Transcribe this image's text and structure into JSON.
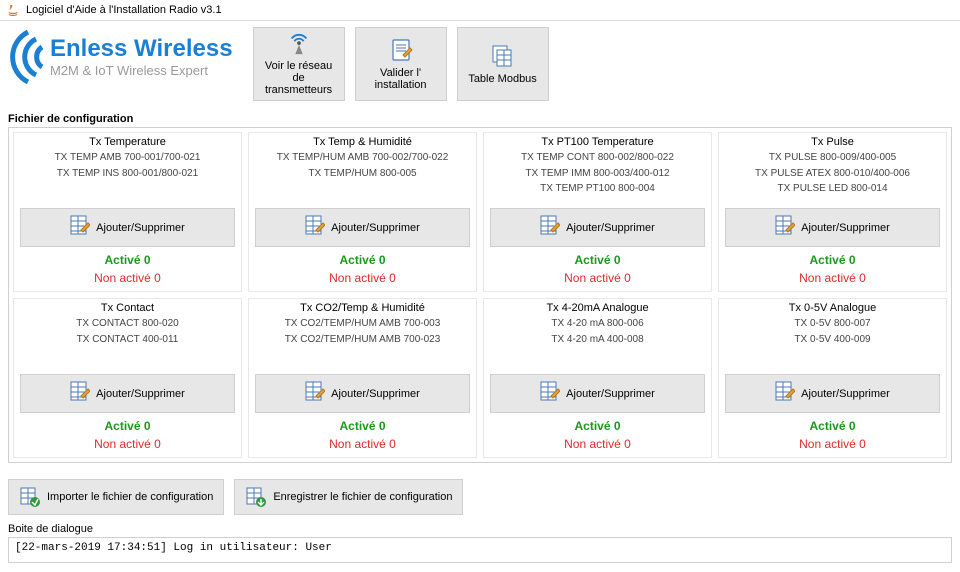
{
  "window": {
    "title": "Logiciel d'Aide à l'Installation Radio v3.1"
  },
  "logo": {
    "brand": "Enless Wireless",
    "tagline": "M2M & IoT Wireless Expert"
  },
  "topButtons": {
    "network": "Voir le réseau de transmetteurs",
    "validate": "Valider l' installation",
    "modbus": "Table Modbus"
  },
  "configSectionTitle": "Fichier de configuration",
  "labels": {
    "ajouter": "Ajouter/Supprimer",
    "active": "Activé 0",
    "inactive": "Non activé 0"
  },
  "cards": [
    {
      "title": "Tx Temperature",
      "models": [
        "TX TEMP AMB 700-001/700-021",
        "TX TEMP INS 800-001/800-021"
      ]
    },
    {
      "title": "Tx Temp & Humidité",
      "models": [
        "TX TEMP/HUM AMB 700-002/700-022",
        "TX TEMP/HUM 800-005"
      ]
    },
    {
      "title": "Tx PT100 Temperature",
      "models": [
        "TX TEMP CONT 800-002/800-022",
        "TX TEMP IMM 800-003/400-012",
        "TX TEMP PT100 800-004"
      ]
    },
    {
      "title": "Tx Pulse",
      "models": [
        "TX PULSE 800-009/400-005",
        "TX PULSE ATEX 800-010/400-006",
        "TX PULSE LED 800-014"
      ]
    },
    {
      "title": "Tx Contact",
      "models": [
        "TX CONTACT 800-020",
        "TX CONTACT 400-011"
      ]
    },
    {
      "title": "Tx CO2/Temp & Humidité",
      "models": [
        "TX CO2/TEMP/HUM AMB 700-003",
        "TX CO2/TEMP/HUM AMB 700-023"
      ]
    },
    {
      "title": "Tx 4-20mA Analogue",
      "models": [
        "TX 4-20 mA 800-006",
        "TX 4-20 mA 400-008"
      ]
    },
    {
      "title": "Tx 0-5V Analogue",
      "models": [
        "TX 0-5V 800-007",
        "TX 0-5V 400-009"
      ]
    }
  ],
  "fileButtons": {
    "import": "Importer le fichier de configuration",
    "save": "Enregistrer le fichier de configuration"
  },
  "dialog": {
    "title": "Boite de dialogue",
    "line": "[22-mars-2019 17:34:51] Log in utilisateur: User"
  },
  "colors": {
    "brand": "#1b80d4",
    "active": "#1a9a1a",
    "inactive": "#e02a2a",
    "buttonBg": "#e7e7e7",
    "border": "#cfcfcf"
  }
}
